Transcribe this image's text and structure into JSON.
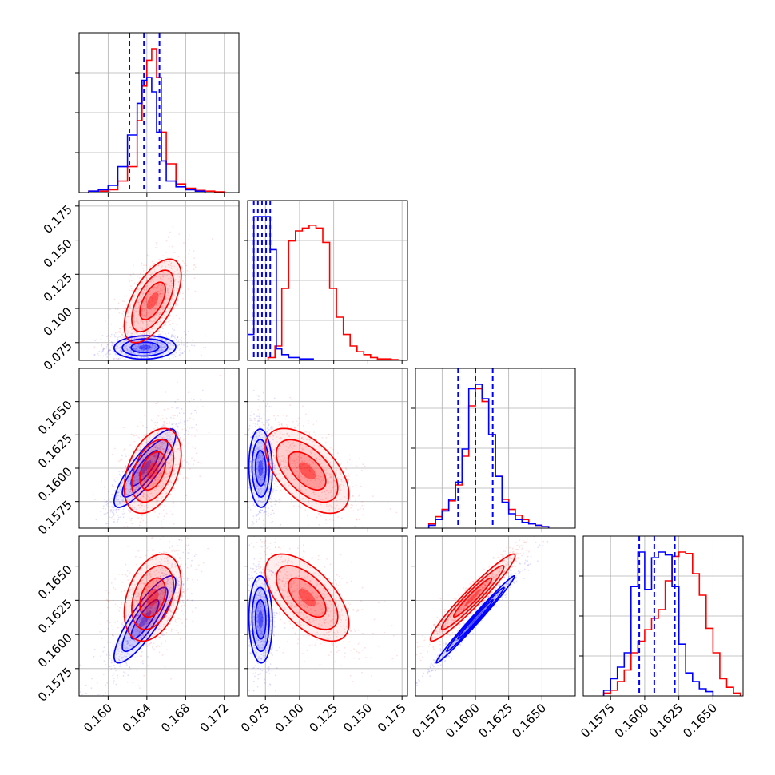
{
  "chart_data": {
    "type": "corner",
    "grid": true,
    "colors": {
      "series_a": "#ff0000",
      "series_b": "#0000ff"
    },
    "parameters": [
      {
        "name": "",
        "range": [
          0.157,
          0.1735
        ],
        "ticks": [
          0.16,
          0.164,
          0.168,
          0.172
        ],
        "tick_labels": [
          "0.160",
          "0.164",
          "0.168",
          "0.172"
        ]
      },
      {
        "name": "",
        "range": [
          0.062,
          0.179
        ],
        "ticks": [
          0.075,
          0.1,
          0.125,
          0.15,
          0.175
        ],
        "tick_labels": [
          "0.075",
          "0.100",
          "0.125",
          "0.150",
          "0.175"
        ]
      },
      {
        "name": "",
        "range": [
          0.1555,
          0.1675
        ],
        "ticks": [
          0.1575,
          0.16,
          0.1625,
          0.165
        ],
        "tick_labels": [
          "0.1575",
          "0.1600",
          "0.1625",
          "0.1650"
        ]
      },
      {
        "name": "",
        "range": [
          0.1555,
          0.1672
        ],
        "ticks": [
          0.1575,
          0.16,
          0.1625,
          0.165
        ],
        "tick_labels": [
          "0.1575",
          "0.1600",
          "0.1625",
          "0.1650"
        ]
      }
    ],
    "series": [
      {
        "color": "#ff0000",
        "means": [
          0.1646,
          0.1055,
          0.1598,
          0.1627
        ],
        "sigmas": [
          0.0012,
          0.0125,
          0.0013,
          0.0013
        ],
        "pair_correlations": {
          "1-0": 0.6,
          "2-0": 0.4,
          "2-1": -0.55,
          "3-0": 0.35,
          "3-1": -0.6,
          "3-2": 0.96
        },
        "histograms": [
          {
            "edges": [
              0.158,
              0.159,
              0.16,
              0.161,
              0.162,
              0.163,
              0.1635,
              0.164,
              0.1645,
              0.165,
              0.1655,
              0.166,
              0.167,
              0.168,
              0.169,
              0.17,
              0.171,
              0.172
            ],
            "counts": [
              0.01,
              0.01,
              0.02,
              0.08,
              0.18,
              0.5,
              0.74,
              0.92,
              1.0,
              0.8,
              0.42,
              0.2,
              0.06,
              0.03,
              0.015,
              0.01,
              0.005
            ]
          },
          {
            "edges": [
              0.072,
              0.077,
              0.082,
              0.087,
              0.092,
              0.097,
              0.102,
              0.107,
              0.112,
              0.117,
              0.122,
              0.127,
              0.132,
              0.137,
              0.142,
              0.147,
              0.152,
              0.157,
              0.162,
              0.167,
              0.172
            ],
            "counts": [
              0.0,
              0.02,
              0.1,
              0.5,
              0.83,
              0.9,
              0.92,
              0.94,
              0.92,
              0.82,
              0.5,
              0.3,
              0.18,
              0.1,
              0.06,
              0.04,
              0.02,
              0.01,
              0.01,
              0.005
            ]
          },
          {
            "edges": [
              0.1565,
              0.157,
              0.1575,
              0.158,
              0.1585,
              0.159,
              0.1595,
              0.16,
              0.1605,
              0.161,
              0.1615,
              0.162,
              0.1625,
              0.163,
              0.1635,
              0.164,
              0.1645,
              0.165,
              0.1655
            ],
            "counts": [
              0.03,
              0.08,
              0.13,
              0.19,
              0.3,
              0.5,
              0.85,
              0.97,
              0.88,
              0.65,
              0.36,
              0.2,
              0.13,
              0.09,
              0.06,
              0.03,
              0.02,
              0.01
            ]
          },
          {
            "edges": [
              0.157,
              0.1575,
              0.158,
              0.1585,
              0.159,
              0.1595,
              0.16,
              0.1605,
              0.161,
              0.1615,
              0.162,
              0.1625,
              0.163,
              0.1635,
              0.164,
              0.1645,
              0.165,
              0.1655,
              0.166,
              0.1665,
              0.167
            ],
            "counts": [
              0.02,
              0.04,
              0.1,
              0.18,
              0.3,
              0.38,
              0.46,
              0.54,
              0.6,
              0.8,
              0.97,
              1.0,
              0.99,
              0.85,
              0.7,
              0.47,
              0.3,
              0.12,
              0.06,
              0.02
            ]
          }
        ]
      },
      {
        "color": "#0000ff",
        "means": [
          0.1638,
          0.0715,
          0.16,
          0.1611
        ],
        "sigmas": [
          0.0013,
          0.0035,
          0.0012,
          0.0013
        ],
        "pair_correlations": {
          "1-0": 0.05,
          "2-0": 0.85,
          "2-1": -0.05,
          "3-0": 0.85,
          "3-1": -0.05,
          "3-2": 0.99
        },
        "histograms": [
          {
            "edges": [
              0.158,
              0.159,
              0.16,
              0.161,
              0.162,
              0.163,
              0.1635,
              0.164,
              0.1645,
              0.165,
              0.1655,
              0.166,
              0.167,
              0.168,
              0.169,
              0.17
            ],
            "counts": [
              0.01,
              0.02,
              0.05,
              0.18,
              0.4,
              0.62,
              0.78,
              0.8,
              0.7,
              0.42,
              0.22,
              0.08,
              0.04,
              0.02,
              0.01
            ]
          },
          {
            "edges": [
              0.062,
              0.0635,
              0.065,
              0.0665,
              0.068,
              0.0695,
              0.071,
              0.0725,
              0.074,
              0.0755,
              0.077,
              0.0785,
              0.08,
              0.0815,
              0.083,
              0.087,
              0.092,
              0.1,
              0.11
            ],
            "counts": [
              0.18,
              0.18,
              0.18,
              1.0,
              1.0,
              1.0,
              1.0,
              1.0,
              1.0,
              1.0,
              1.0,
              0.77,
              0.77,
              0.77,
              0.08,
              0.04,
              0.02,
              0.01
            ]
          },
          {
            "edges": [
              0.1565,
              0.157,
              0.1575,
              0.158,
              0.1585,
              0.159,
              0.1595,
              0.16,
              0.1605,
              0.161,
              0.1615,
              0.162,
              0.1625,
              0.163,
              0.1635,
              0.164,
              0.1645,
              0.165,
              0.1655
            ],
            "counts": [
              0.02,
              0.06,
              0.12,
              0.2,
              0.32,
              0.55,
              0.97,
              1.0,
              0.9,
              0.65,
              0.36,
              0.18,
              0.1,
              0.06,
              0.04,
              0.03,
              0.02,
              0.01
            ]
          },
          {
            "edges": [
              0.157,
              0.1575,
              0.158,
              0.1585,
              0.159,
              0.1595,
              0.16,
              0.1605,
              0.161,
              0.1615,
              0.162,
              0.1625,
              0.163,
              0.1635,
              0.164,
              0.1645,
              0.165
            ],
            "counts": [
              0.04,
              0.12,
              0.2,
              0.3,
              0.76,
              1.0,
              0.74,
              0.96,
              1.0,
              0.98,
              0.76,
              0.36,
              0.16,
              0.1,
              0.05,
              0.03
            ]
          }
        ]
      }
    ],
    "quantile_lines": {
      "color": "#0000ff",
      "style": "dashed",
      "values": [
        [
          0.1622,
          0.1637,
          0.1653
        ],
        [
          0.0665,
          0.0695,
          0.0725,
          0.0755,
          0.0785
        ],
        [
          0.1587,
          0.16,
          0.1613
        ],
        [
          0.1596,
          0.1607,
          0.1622
        ]
      ]
    }
  }
}
